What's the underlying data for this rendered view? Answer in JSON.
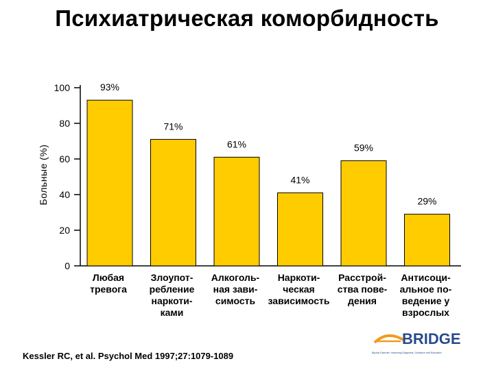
{
  "title": "Психиатрическая коморбидность",
  "chart_data": {
    "type": "bar",
    "title": "Психиатрическая коморбидность",
    "ylabel": "Больные (%)",
    "xlabel": "",
    "ylim": [
      0,
      100
    ],
    "yticks": [
      0,
      20,
      40,
      60,
      80,
      100
    ],
    "categories": [
      [
        "Любая",
        "тревога"
      ],
      [
        "Злоупот-",
        "ребление",
        "наркоти-",
        "ками"
      ],
      [
        "Алкоголь-",
        "ная зави-",
        "симость"
      ],
      [
        "Наркоти-",
        "ческая",
        "зависимость"
      ],
      [
        "Расстрой-",
        "ства пове-",
        "дения"
      ],
      [
        "Антисоци-",
        "альное по-",
        "ведение у",
        "взрослых"
      ]
    ],
    "values": [
      93,
      71,
      61,
      41,
      59,
      29
    ],
    "data_labels": [
      "93%",
      "71%",
      "61%",
      "41%",
      "59%",
      "29%"
    ],
    "bar_color": "#FFCC00"
  },
  "citation": "Kessler RC, et al. Psychol Med 1997;27:1079-1089",
  "logo": {
    "text": "BRIDGE",
    "tagline": "Bipolar Disorder: Improving Diagnosis, Guidance and Education",
    "accent_color": "#F39A1E",
    "text_color": "#2A4A8C"
  }
}
